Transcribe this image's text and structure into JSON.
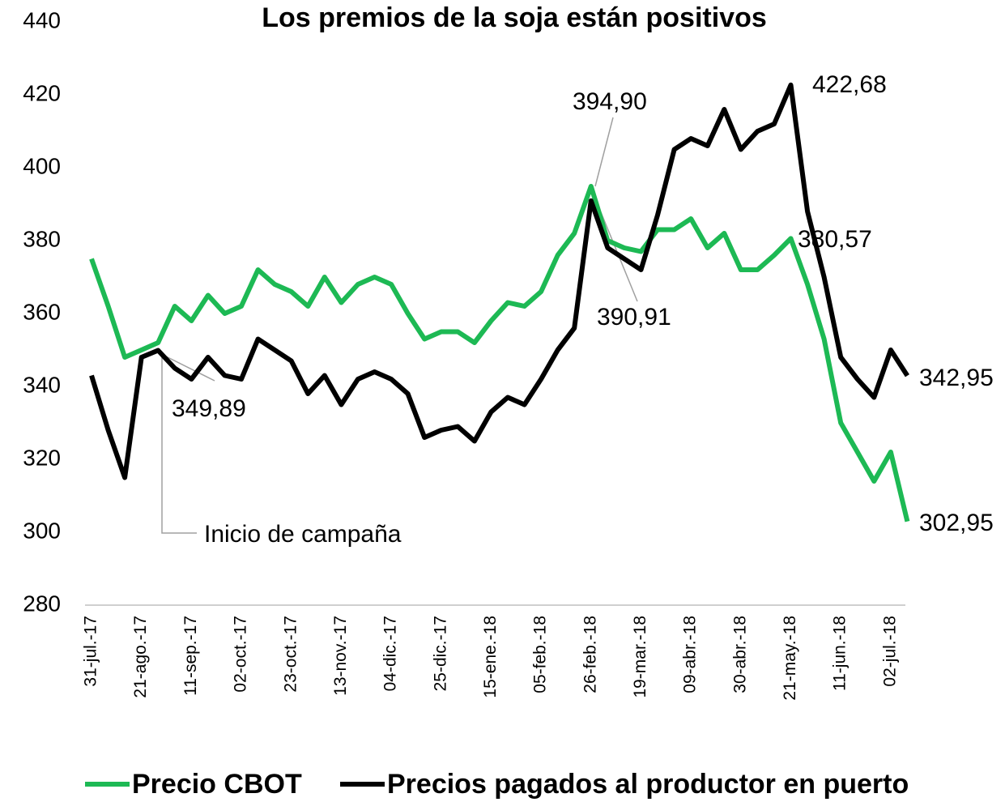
{
  "chart_data": {
    "type": "line",
    "title": "Los premios de la soja están positivos",
    "annotation": "Inicio de campaña",
    "categories": [
      "31-jul.-17",
      null,
      null,
      "21-ago.-17",
      null,
      null,
      "11-sep.-17",
      null,
      null,
      "02-oct.-17",
      null,
      null,
      "23-oct.-17",
      null,
      null,
      "13-nov.-17",
      null,
      null,
      "04-dic.-17",
      null,
      null,
      "25-dic.-17",
      null,
      null,
      "15-ene.-18",
      null,
      null,
      "05-feb.-18",
      null,
      null,
      "26-feb.-18",
      null,
      null,
      "19-mar.-18",
      null,
      null,
      "09-abr.-18",
      null,
      null,
      "30-abr.-18",
      null,
      null,
      "21-may.-18",
      null,
      null,
      "11-jun.-18",
      null,
      null,
      "02-jul.-18",
      null
    ],
    "series": [
      {
        "name": "Precio CBOT",
        "color": "#1db954",
        "values": [
          375,
          362,
          348,
          350,
          352,
          362,
          358,
          365,
          360,
          362,
          372,
          368,
          366,
          362,
          370,
          363,
          368,
          370,
          368,
          360,
          353,
          355,
          355,
          352,
          358,
          363,
          362,
          366,
          376,
          382,
          394.9,
          380,
          378,
          377,
          383,
          383,
          386,
          378,
          382,
          372,
          372,
          376,
          380.57,
          368,
          353,
          330,
          322,
          314,
          322,
          302.95
        ],
        "value_labels": [
          null,
          null,
          null,
          null,
          null,
          null,
          null,
          null,
          null,
          null,
          null,
          null,
          null,
          null,
          null,
          null,
          null,
          null,
          null,
          null,
          null,
          null,
          null,
          null,
          null,
          null,
          null,
          null,
          null,
          null,
          "394,90",
          null,
          null,
          null,
          null,
          null,
          null,
          null,
          null,
          null,
          null,
          null,
          "380,57",
          null,
          null,
          null,
          null,
          null,
          null,
          "302,95"
        ]
      },
      {
        "name": "Precios pagados al productor en puerto",
        "color": "#000000",
        "values": [
          343,
          328,
          315,
          348,
          349.89,
          345,
          342,
          348,
          343,
          342,
          353,
          350,
          347,
          338,
          343,
          335,
          342,
          344,
          342,
          338,
          326,
          328,
          329,
          325,
          333,
          337,
          335,
          342,
          350,
          356,
          390.91,
          378,
          375,
          372,
          387,
          405,
          408,
          406,
          416,
          405,
          410,
          412,
          422.68,
          388,
          370,
          348,
          342,
          337,
          350,
          342.95
        ],
        "value_labels": [
          null,
          null,
          null,
          null,
          "349,89",
          null,
          null,
          null,
          null,
          null,
          null,
          null,
          null,
          null,
          null,
          null,
          null,
          null,
          null,
          null,
          null,
          null,
          null,
          null,
          null,
          null,
          null,
          null,
          null,
          null,
          "390,91",
          null,
          null,
          null,
          null,
          null,
          null,
          null,
          null,
          null,
          null,
          null,
          "422,68",
          null,
          null,
          null,
          null,
          null,
          null,
          "342,95"
        ]
      }
    ],
    "ylim": [
      280,
      440
    ],
    "yticks": [
      280,
      300,
      320,
      340,
      360,
      380,
      400,
      420,
      440
    ],
    "grid": false
  }
}
